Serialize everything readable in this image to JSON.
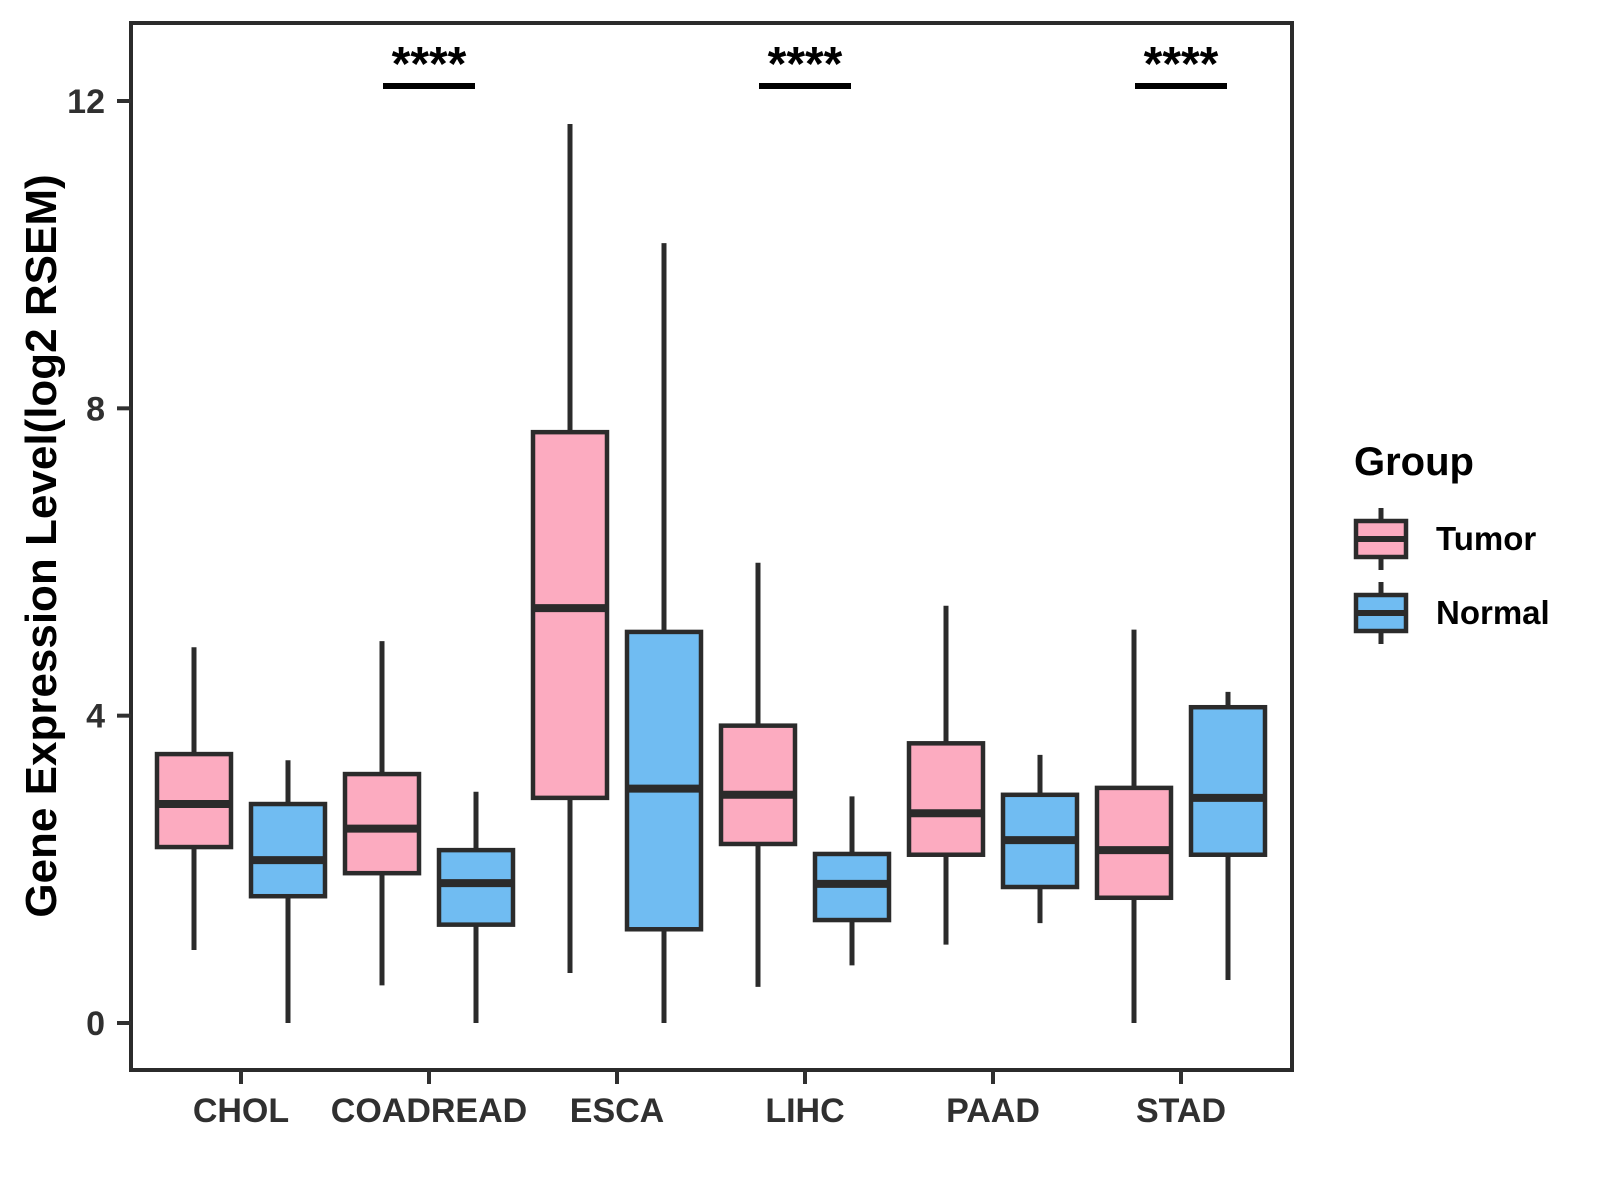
{
  "chart_data": {
    "type": "boxplot",
    "title": "",
    "xlabel": "",
    "ylabel": "Gene Expression Level(log2 RSEM)",
    "ylim": [
      0,
      12
    ],
    "y_ticks": [
      0,
      4,
      8,
      12
    ],
    "grid": "off",
    "categories": [
      "CHOL",
      "COADREAD",
      "ESCA",
      "LIHC",
      "PAAD",
      "STAD"
    ],
    "series": [
      {
        "name": "Tumor",
        "color": "#FCABC0",
        "boxes": [
          {
            "whisker_low": 0.95,
            "q1": 2.29,
            "median": 2.85,
            "q3": 3.5,
            "whisker_high": 4.89
          },
          {
            "whisker_low": 0.49,
            "q1": 1.95,
            "median": 2.53,
            "q3": 3.24,
            "whisker_high": 4.97
          },
          {
            "whisker_low": 0.65,
            "q1": 2.93,
            "median": 5.4,
            "q3": 7.69,
            "whisker_high": 11.7
          },
          {
            "whisker_low": 0.47,
            "q1": 2.33,
            "median": 2.97,
            "q3": 3.87,
            "whisker_high": 5.99
          },
          {
            "whisker_low": 1.02,
            "q1": 2.19,
            "median": 2.73,
            "q3": 3.64,
            "whisker_high": 5.43
          },
          {
            "whisker_low": 0.0,
            "q1": 1.63,
            "median": 2.25,
            "q3": 3.06,
            "whisker_high": 5.12
          }
        ]
      },
      {
        "name": "Normal",
        "color": "#70BCF2",
        "boxes": [
          {
            "whisker_low": 0.0,
            "q1": 1.65,
            "median": 2.12,
            "q3": 2.85,
            "whisker_high": 3.42
          },
          {
            "whisker_low": 0.0,
            "q1": 1.28,
            "median": 1.82,
            "q3": 2.25,
            "whisker_high": 3.01
          },
          {
            "whisker_low": 0.0,
            "q1": 1.22,
            "median": 3.05,
            "q3": 5.09,
            "whisker_high": 10.15
          },
          {
            "whisker_low": 0.75,
            "q1": 1.34,
            "median": 1.81,
            "q3": 2.2,
            "whisker_high": 2.95
          },
          {
            "whisker_low": 1.3,
            "q1": 1.77,
            "median": 2.38,
            "q3": 2.97,
            "whisker_high": 3.49
          },
          {
            "whisker_low": 0.56,
            "q1": 2.19,
            "median": 2.93,
            "q3": 4.11,
            "whisker_high": 4.31
          }
        ]
      }
    ],
    "significance": [
      {
        "category": "COADREAD",
        "label": "****"
      },
      {
        "category": "LIHC",
        "label": "****"
      },
      {
        "category": "STAD",
        "label": "****"
      }
    ],
    "legend": {
      "title": "Group",
      "position": "right"
    },
    "style": {
      "stroke_color": "#2B2B2B",
      "tick_text_color": "#303030",
      "panel_border_color": "#2B2B2B",
      "background": "#FFFFFF"
    }
  }
}
